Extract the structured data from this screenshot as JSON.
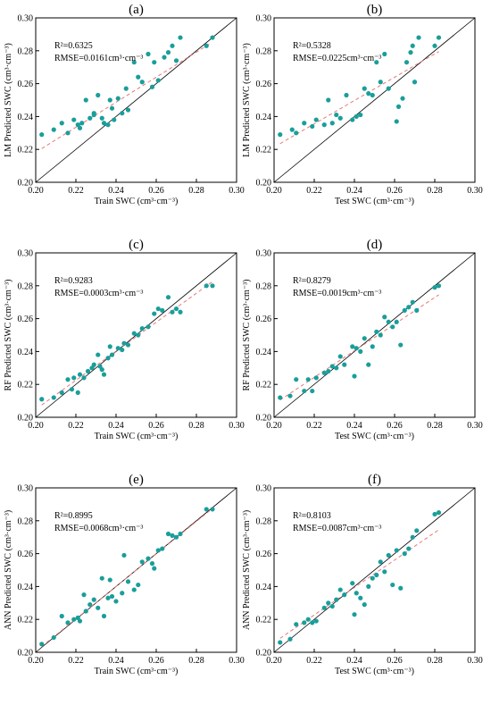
{
  "colors": {
    "point": "#1a9e9a",
    "identity_line": "#000000",
    "fit_line": "#e87878"
  },
  "chart_data": [
    {
      "panel": "(a)",
      "type": "scatter",
      "model": "LM",
      "xlabel": "Train SWC (cm³·cm⁻³)",
      "ylabel": "LM Predicted SWC (cm³·cm⁻³)",
      "r2": "R²=0.6325",
      "rmse": "RMSE=0.0161cm³·cm⁻³",
      "xlim": [
        0.2,
        0.3
      ],
      "ylim": [
        0.2,
        0.3
      ],
      "xticks": [
        "0.20",
        "0.22",
        "0.24",
        "0.26",
        "0.28",
        "0.30"
      ],
      "yticks": [
        "0.20",
        "0.22",
        "0.24",
        "0.26",
        "0.28",
        "0.30"
      ],
      "fit": [
        [
          0.203,
          0.2205
        ],
        [
          0.287,
          0.2845
        ]
      ],
      "x": [
        0.203,
        0.209,
        0.213,
        0.216,
        0.219,
        0.221,
        0.222,
        0.223,
        0.225,
        0.227,
        0.229,
        0.229,
        0.231,
        0.233,
        0.234,
        0.236,
        0.237,
        0.238,
        0.239,
        0.241,
        0.243,
        0.245,
        0.246,
        0.249,
        0.251,
        0.253,
        0.256,
        0.258,
        0.259,
        0.261,
        0.264,
        0.266,
        0.268,
        0.27,
        0.272,
        0.285,
        0.288
      ],
      "y": [
        0.229,
        0.232,
        0.236,
        0.23,
        0.238,
        0.235,
        0.233,
        0.236,
        0.25,
        0.239,
        0.242,
        0.241,
        0.253,
        0.239,
        0.236,
        0.235,
        0.25,
        0.245,
        0.238,
        0.251,
        0.242,
        0.257,
        0.244,
        0.273,
        0.264,
        0.261,
        0.278,
        0.258,
        0.273,
        0.262,
        0.276,
        0.279,
        0.283,
        0.274,
        0.288,
        0.283,
        0.288
      ]
    },
    {
      "panel": "(b)",
      "type": "scatter",
      "model": "LM",
      "xlabel": "Test SWC (cm³·cm⁻³)",
      "ylabel": "LM Predicted SWC (cm³·cm⁻³)",
      "r2": "R²=0.5328",
      "rmse": "RMSE=0.0225cm³·cm⁻³",
      "xlim": [
        0.2,
        0.3
      ],
      "ylim": [
        0.2,
        0.3
      ],
      "xticks": [
        "0.20",
        "0.22",
        "0.24",
        "0.26",
        "0.28",
        "0.30"
      ],
      "yticks": [
        "0.20",
        "0.22",
        "0.24",
        "0.26",
        "0.28",
        "0.30"
      ],
      "fit": [
        [
          0.203,
          0.2235
        ],
        [
          0.282,
          0.2795
        ]
      ],
      "x": [
        0.203,
        0.209,
        0.211,
        0.215,
        0.219,
        0.221,
        0.225,
        0.227,
        0.229,
        0.231,
        0.233,
        0.236,
        0.239,
        0.241,
        0.243,
        0.245,
        0.247,
        0.249,
        0.251,
        0.253,
        0.255,
        0.257,
        0.261,
        0.262,
        0.264,
        0.266,
        0.268,
        0.269,
        0.27,
        0.272,
        0.28,
        0.282
      ],
      "y": [
        0.229,
        0.232,
        0.23,
        0.236,
        0.234,
        0.238,
        0.235,
        0.25,
        0.236,
        0.241,
        0.239,
        0.253,
        0.238,
        0.24,
        0.241,
        0.257,
        0.254,
        0.253,
        0.273,
        0.261,
        0.278,
        0.257,
        0.237,
        0.246,
        0.251,
        0.273,
        0.279,
        0.283,
        0.261,
        0.288,
        0.283,
        0.288
      ]
    },
    {
      "panel": "(c)",
      "type": "scatter",
      "model": "RF",
      "xlabel": "Train SWC (cm³·cm⁻³)",
      "ylabel": "RF Predicted SWC (cm³·cm⁻³)",
      "r2": "R²=0.9283",
      "rmse": "RMSE=0.0003cm³·cm⁻³",
      "xlim": [
        0.2,
        0.3
      ],
      "ylim": [
        0.2,
        0.3
      ],
      "xticks": [
        "0.20",
        "0.22",
        "0.24",
        "0.26",
        "0.28",
        "0.30"
      ],
      "yticks": [
        "0.20",
        "0.22",
        "0.24",
        "0.26",
        "0.28",
        "0.30"
      ],
      "fit": [
        [
          0.203,
          0.2075
        ],
        [
          0.288,
          0.2825
        ]
      ],
      "x": [
        0.203,
        0.209,
        0.213,
        0.216,
        0.218,
        0.219,
        0.221,
        0.222,
        0.224,
        0.226,
        0.228,
        0.229,
        0.231,
        0.232,
        0.233,
        0.234,
        0.236,
        0.237,
        0.238,
        0.241,
        0.243,
        0.244,
        0.246,
        0.249,
        0.251,
        0.253,
        0.256,
        0.259,
        0.261,
        0.263,
        0.266,
        0.268,
        0.27,
        0.272,
        0.285,
        0.288
      ],
      "y": [
        0.211,
        0.212,
        0.215,
        0.223,
        0.217,
        0.224,
        0.215,
        0.226,
        0.224,
        0.228,
        0.23,
        0.232,
        0.238,
        0.231,
        0.229,
        0.226,
        0.236,
        0.243,
        0.238,
        0.242,
        0.241,
        0.245,
        0.244,
        0.251,
        0.25,
        0.254,
        0.255,
        0.263,
        0.266,
        0.265,
        0.273,
        0.264,
        0.266,
        0.264,
        0.28,
        0.28
      ]
    },
    {
      "panel": "(d)",
      "type": "scatter",
      "model": "RF",
      "xlabel": "Test SWC (cm³·cm⁻³)",
      "ylabel": "RF Predicted SWC (cm³·cm⁻³)",
      "r2": "R²=0.8279",
      "rmse": "RMSE=0.0019cm³·cm⁻³",
      "xlim": [
        0.2,
        0.3
      ],
      "ylim": [
        0.2,
        0.3
      ],
      "xticks": [
        "0.20",
        "0.22",
        "0.24",
        "0.26",
        "0.28",
        "0.30"
      ],
      "yticks": [
        "0.20",
        "0.22",
        "0.24",
        "0.26",
        "0.28",
        "0.30"
      ],
      "fit": [
        [
          0.203,
          0.2105
        ],
        [
          0.282,
          0.2745
        ]
      ],
      "x": [
        0.203,
        0.208,
        0.211,
        0.215,
        0.217,
        0.219,
        0.221,
        0.225,
        0.227,
        0.229,
        0.231,
        0.233,
        0.235,
        0.239,
        0.24,
        0.241,
        0.243,
        0.245,
        0.247,
        0.249,
        0.251,
        0.253,
        0.255,
        0.257,
        0.259,
        0.261,
        0.263,
        0.265,
        0.267,
        0.269,
        0.271,
        0.28,
        0.282
      ],
      "y": [
        0.212,
        0.213,
        0.223,
        0.216,
        0.223,
        0.216,
        0.224,
        0.227,
        0.228,
        0.231,
        0.23,
        0.237,
        0.232,
        0.243,
        0.225,
        0.242,
        0.24,
        0.248,
        0.232,
        0.243,
        0.252,
        0.25,
        0.261,
        0.258,
        0.255,
        0.258,
        0.244,
        0.265,
        0.267,
        0.27,
        0.265,
        0.279,
        0.28
      ]
    },
    {
      "panel": "(e)",
      "type": "scatter",
      "model": "ANN",
      "xlabel": "Train SWC (cm³·cm⁻³)",
      "ylabel": "ANN Predicted SWC (cm³·cm⁻³)",
      "r2": "R²=0.8995",
      "rmse": "RMSE=0.0068cm³·cm⁻³",
      "xlim": [
        0.2,
        0.3
      ],
      "ylim": [
        0.2,
        0.3
      ],
      "xticks": [
        "0.20",
        "0.22",
        "0.24",
        "0.26",
        "0.28",
        "0.30"
      ],
      "yticks": [
        "0.20",
        "0.22",
        "0.24",
        "0.26",
        "0.28",
        "0.30"
      ],
      "fit": [
        [
          0.203,
          0.2035
        ],
        [
          0.288,
          0.2875
        ]
      ],
      "x": [
        0.203,
        0.209,
        0.213,
        0.216,
        0.219,
        0.221,
        0.222,
        0.224,
        0.225,
        0.227,
        0.229,
        0.231,
        0.233,
        0.234,
        0.236,
        0.237,
        0.238,
        0.24,
        0.243,
        0.244,
        0.246,
        0.249,
        0.251,
        0.253,
        0.256,
        0.258,
        0.259,
        0.261,
        0.263,
        0.266,
        0.268,
        0.27,
        0.272,
        0.285,
        0.288
      ],
      "y": [
        0.205,
        0.209,
        0.222,
        0.218,
        0.22,
        0.221,
        0.219,
        0.235,
        0.225,
        0.229,
        0.232,
        0.227,
        0.245,
        0.222,
        0.233,
        0.244,
        0.234,
        0.231,
        0.236,
        0.259,
        0.243,
        0.238,
        0.241,
        0.255,
        0.257,
        0.254,
        0.251,
        0.262,
        0.263,
        0.272,
        0.271,
        0.27,
        0.272,
        0.287,
        0.287
      ]
    },
    {
      "panel": "(f)",
      "type": "scatter",
      "model": "ANN",
      "xlabel": "Test SWC (cm³·cm⁻³)",
      "ylabel": "ANN Predicted SWC (cm³·cm⁻³)",
      "r2": "R²=0.8103",
      "rmse": "RMSE=0.0087cm³·cm⁻³",
      "xlim": [
        0.2,
        0.3
      ],
      "ylim": [
        0.2,
        0.3
      ],
      "xticks": [
        "0.20",
        "0.22",
        "0.24",
        "0.26",
        "0.28",
        "0.30"
      ],
      "yticks": [
        "0.20",
        "0.22",
        "0.24",
        "0.26",
        "0.28",
        "0.30"
      ],
      "fit": [
        [
          0.203,
          0.2085
        ],
        [
          0.282,
          0.2745
        ]
      ],
      "x": [
        0.203,
        0.208,
        0.211,
        0.215,
        0.217,
        0.219,
        0.221,
        0.225,
        0.227,
        0.229,
        0.231,
        0.233,
        0.235,
        0.239,
        0.24,
        0.241,
        0.243,
        0.245,
        0.247,
        0.249,
        0.251,
        0.253,
        0.255,
        0.257,
        0.259,
        0.261,
        0.263,
        0.265,
        0.267,
        0.269,
        0.271,
        0.28,
        0.282
      ],
      "y": [
        0.206,
        0.208,
        0.217,
        0.218,
        0.22,
        0.218,
        0.219,
        0.227,
        0.23,
        0.228,
        0.232,
        0.238,
        0.235,
        0.242,
        0.223,
        0.236,
        0.233,
        0.229,
        0.24,
        0.245,
        0.247,
        0.255,
        0.249,
        0.259,
        0.241,
        0.262,
        0.239,
        0.26,
        0.263,
        0.27,
        0.274,
        0.284,
        0.285
      ]
    }
  ]
}
